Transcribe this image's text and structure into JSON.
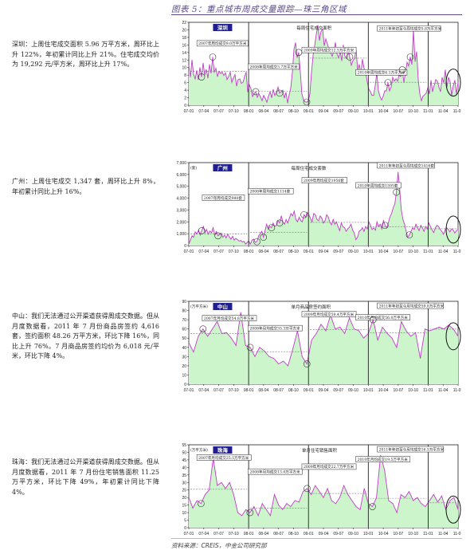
{
  "figure_title": "图表 5：重点城市周成交量跟踪—珠三角区域",
  "source": {
    "prefix": "资料来源：",
    "brand": "CREIS",
    "suffix": "，中金公司研究部"
  },
  "texts": [
    "深圳：上周住宅成交面积 5.96 万平方米，周环比上升 122%，年初累计同比上升 21%。住宅成交均价为 19,292 元/平方米，周环比上升 17%。",
    "广州：上周住宅成交 1,347 套，周环比上升 8%，年初累计同比上升 16%。",
    "中山：我们无法通过公开渠道获得周成交数据。但从月度数据看，2011 年 7 月份商品房签约 4,616 套，签约面积 48.26 万平方米，环比下降 16%，同比上升 76%。7 月商品房签约均价为 6,018 元/平米，环比下降 4%。",
    "珠海：我们无法通过公开渠道获得周成交数据。但从月度数据看，2011 年 7 月份住宅销售面积 11.25 万平方米，环比下降 49%，年初累计同比下降 4%。"
  ],
  "colors": {
    "area_fill": "#ccf5cc",
    "line": "#c23bc8",
    "badge": "#1f1f8f",
    "avg_line": "#777777",
    "title_text": "#5a4a8a"
  },
  "chart_data": [
    {
      "type": "area",
      "city": "深圳",
      "title": "每周住宅成交面积",
      "x_ticks": [
        "07-01",
        "07-04",
        "07-07",
        "07-10",
        "08-01",
        "08-04",
        "08-07",
        "08-10",
        "09-01",
        "09-04",
        "09-07",
        "09-10",
        "10-01",
        "10-04",
        "10-07",
        "10-10",
        "11-01",
        "11-04",
        "11-07"
      ],
      "y_ticks": [
        "0",
        "2",
        "4",
        "6",
        "8",
        "10",
        "12",
        "14",
        "16",
        "18",
        "20",
        "22"
      ],
      "ylim": [
        0,
        22
      ],
      "values": [
        10.5,
        7.5,
        12.0,
        8.2,
        7.0,
        9.2,
        6.8,
        10.0,
        7.5,
        11.2,
        8.0,
        9.5,
        7.2,
        10.8,
        8.5,
        12.8,
        8.8,
        9.8,
        7.6,
        9.0,
        8.4,
        8.8,
        7.9,
        8.6,
        6.8,
        7.6,
        8.8,
        6.1,
        7.2,
        8.1,
        5.1,
        6.8,
        7.0,
        5.8,
        6.1,
        7.5,
        8.8,
        3.5,
        5.4,
        4.4,
        2.3,
        3.0,
        3.6,
        2.1,
        3.0,
        2.2,
        1.2,
        2.6,
        1.8,
        0.8,
        2.4,
        3.6,
        2.0,
        4.2,
        2.6,
        3.4,
        4.8,
        3.2,
        3.6,
        4.0,
        1.9,
        3.4,
        0.6,
        2.8,
        4.6,
        8.6,
        14.8,
        16.6,
        12.6,
        14.0,
        8.8,
        3.0,
        1.4,
        0.9,
        0.8,
        1.2,
        3.0,
        8.6,
        13.2,
        15.8,
        18.8,
        21.2,
        17.2,
        19.6,
        20.2,
        15.8,
        17.6,
        16.2,
        15.0,
        14.0,
        13.0,
        14.4,
        16.6,
        13.6,
        12.6,
        14.2,
        11.8,
        16.0,
        13.0,
        12.4,
        14.6,
        12.8,
        10.6,
        11.8,
        12.4,
        14.8,
        9.2,
        10.8,
        8.4,
        12.2,
        9.8,
        8.8,
        6.2,
        4.2,
        3.6,
        2.6,
        2.6,
        5.2,
        8.6,
        3.8,
        2.3,
        1.4,
        2.4,
        3.8,
        3.8,
        6.0,
        3.8,
        4.8,
        7.4,
        6.4,
        7.0,
        6.4,
        8.0,
        7.6,
        9.4,
        6.0,
        8.6,
        11.4,
        10.4,
        12.8,
        10.8,
        20.0,
        11.6,
        14.2,
        6.8,
        3.0,
        1.2,
        2.4,
        2.8,
        3.2,
        4.6,
        3.0,
        6.6,
        3.6,
        5.2,
        6.8,
        6.4,
        4.8,
        3.6,
        7.4,
        6.0,
        9.4,
        4.8,
        7.4,
        6.2,
        2.6,
        5.2,
        6.6,
        3.0,
        6.0
      ],
      "yearly_avgs": [
        {
          "label": "2007年周均成交9.0万平方米",
          "value": 9.0
        },
        {
          "label": "2008年周均成交3.7万平方米",
          "value": 3.7
        },
        {
          "label": "2009年周均成交12.5万平方米",
          "value": 12.5
        },
        {
          "label": "2010年周均成交6.1万平方米",
          "value": 6.1
        },
        {
          "label": "2011年年初至今周均成交5.8万平方米",
          "value": 5.8
        }
      ],
      "unit_label": ""
    },
    {
      "type": "area",
      "city": "广州",
      "title": "每周住宅成交套数",
      "x_ticks": [
        "07-01",
        "07-04",
        "07-07",
        "07-10",
        "08-01",
        "08-04",
        "08-07",
        "08-10",
        "09-01",
        "09-04",
        "09-07",
        "09-10",
        "10-01",
        "10-04",
        "10-07",
        "10-10",
        "11-01",
        "11-04",
        "11-07"
      ],
      "y_ticks": [
        "0",
        "1,000",
        "2,000",
        "3,000",
        "4,000",
        "5,000",
        "6,000",
        "7,000"
      ],
      "ylim": [
        0,
        7000
      ],
      "values": [
        120,
        450,
        820,
        700,
        1150,
        980,
        1300,
        880,
        1250,
        1600,
        1100,
        1350,
        950,
        1220,
        1080,
        1500,
        900,
        1180,
        820,
        950,
        1050,
        700,
        880,
        640,
        960,
        720,
        540,
        780,
        460,
        600,
        500,
        380,
        420,
        300,
        360,
        120,
        260,
        380,
        120,
        460,
        540,
        260,
        320,
        800,
        1000,
        1200,
        700,
        1250,
        1800,
        1400,
        1600,
        1500,
        1900,
        1600,
        1700,
        2100,
        1900,
        2500,
        2000,
        1800,
        2200,
        1900,
        2300,
        2700,
        2500,
        2900,
        2200,
        2000,
        2400,
        2100,
        2000,
        2600,
        2400,
        2800,
        2600,
        2300,
        2000,
        2700,
        2600,
        2200,
        2100,
        2500,
        2300,
        1900,
        2100,
        2600,
        2400,
        1950,
        1750,
        2200,
        1800,
        2000,
        1600,
        1250,
        1900,
        1600,
        1500,
        1200,
        1400,
        1550,
        1800,
        1300,
        1050,
        500,
        700,
        1200,
        1300,
        1500,
        1200,
        1600,
        1400,
        2000,
        1700,
        1350,
        1500,
        1300,
        2000,
        1600,
        1800,
        1400,
        2100,
        1700,
        1500,
        1900,
        2400,
        2700,
        3200,
        3500,
        4500,
        6200,
        4800,
        3000,
        2200,
        1800,
        1200,
        700,
        900,
        1200,
        1500,
        1350,
        1800,
        1500,
        1250,
        1700,
        1500,
        1200,
        1600,
        1400,
        1900,
        1600,
        1300,
        1100,
        1500,
        1700,
        1600,
        1350,
        1200,
        950,
        1300,
        1500,
        1350,
        1150,
        1400,
        1300,
        1050,
        1250,
        1350
      ],
      "yearly_avgs": [
        {
          "label": "2007年周均成交980套",
          "value": 980
        },
        {
          "label": "2008年周均成交1114套",
          "value": 1114
        },
        {
          "label": "2009年周均成交1956套",
          "value": 1956
        },
        {
          "label": "2010年周均成交1595套",
          "value": 1595
        },
        {
          "label": "2011年年初至今周均成交1416套",
          "value": 1416
        }
      ],
      "unit_label": "(套)"
    },
    {
      "type": "area",
      "city": "中山",
      "title": "单月商品房签约面积",
      "x_ticks": [
        "07-01",
        "07-04",
        "07-07",
        "07-10",
        "08-01",
        "08-04",
        "08-07",
        "08-10",
        "09-01",
        "09-04",
        "09-07",
        "09-10",
        "10-01",
        "10-04",
        "10-07",
        "10-10",
        "11-01",
        "11-04",
        "11-07"
      ],
      "y_ticks": [
        "0",
        "10",
        "20",
        "30",
        "40",
        "50",
        "60",
        "70",
        "80",
        "90"
      ],
      "ylim": [
        0,
        90
      ],
      "values": [
        45,
        35,
        52,
        60,
        52,
        60,
        68,
        55,
        56,
        50,
        42,
        78,
        42,
        40,
        30,
        40,
        36,
        30,
        28,
        22,
        25,
        20,
        38,
        58,
        30,
        22,
        48,
        55,
        65,
        58,
        75,
        60,
        62,
        55,
        72,
        60,
        58,
        50,
        55,
        70,
        48,
        62,
        55,
        50,
        40,
        68,
        58,
        52,
        56,
        28,
        60,
        58,
        60,
        62,
        60,
        64,
        60,
        52
      ],
      "yearly_avgs": [
        {
          "label": "2007年月均成交54.8万平方米",
          "value": 54.8
        },
        {
          "label": "2008年月均成交35.3万平方米",
          "value": 35.3
        },
        {
          "label": "2009年月均成交59.4万平方米",
          "value": 59.4
        },
        {
          "label": "2010年月均成交56.0万平方米",
          "value": 56.0
        },
        {
          "label": "2011年年初至今月均成交59.8万平方米",
          "value": 59.8
        }
      ],
      "unit_label": "(万平方米)"
    },
    {
      "type": "area",
      "city": "珠海",
      "title": "单月住宅销售面积",
      "x_ticks": [
        "07-01",
        "07-04",
        "07-07",
        "07-10",
        "08-01",
        "08-04",
        "08-07",
        "08-10",
        "09-01",
        "09-04",
        "09-07",
        "09-10",
        "10-01",
        "10-04",
        "10-07",
        "10-10",
        "11-01",
        "11-04",
        "11-07"
      ],
      "y_ticks": [
        "0",
        "5",
        "10",
        "15",
        "20",
        "25",
        "30",
        "35",
        "40",
        "45",
        "50",
        "55"
      ],
      "ylim": [
        0,
        55
      ],
      "values": [
        20,
        13,
        18,
        16,
        22,
        25,
        46,
        28,
        30,
        26,
        30,
        22,
        10,
        8,
        12,
        10,
        14,
        8,
        16,
        12,
        8,
        22,
        15,
        12,
        16,
        14,
        18,
        17,
        24,
        26,
        22,
        28,
        24,
        20,
        26,
        18,
        16,
        20,
        28,
        22,
        18,
        14,
        12,
        26,
        16,
        14,
        20,
        48,
        38,
        18,
        16,
        10,
        22,
        20,
        24,
        18,
        20,
        16,
        14,
        18,
        22,
        17,
        21,
        12,
        18,
        20,
        12
      ],
      "yearly_avgs": [
        {
          "label": "2007年月均成交25.5万平方米",
          "value": 25.5
        },
        {
          "label": "2008年月均成交13.0万平方米",
          "value": 13.0
        },
        {
          "label": "2009年月均成交22.7万平方米",
          "value": 22.7
        },
        {
          "label": "2010年月均成交19.5万平方米",
          "value": 19.5
        },
        {
          "label": "2011年年初至今月均成交16.5万平方米",
          "value": 16.5
        }
      ],
      "unit_label": "(万平方米)"
    }
  ]
}
